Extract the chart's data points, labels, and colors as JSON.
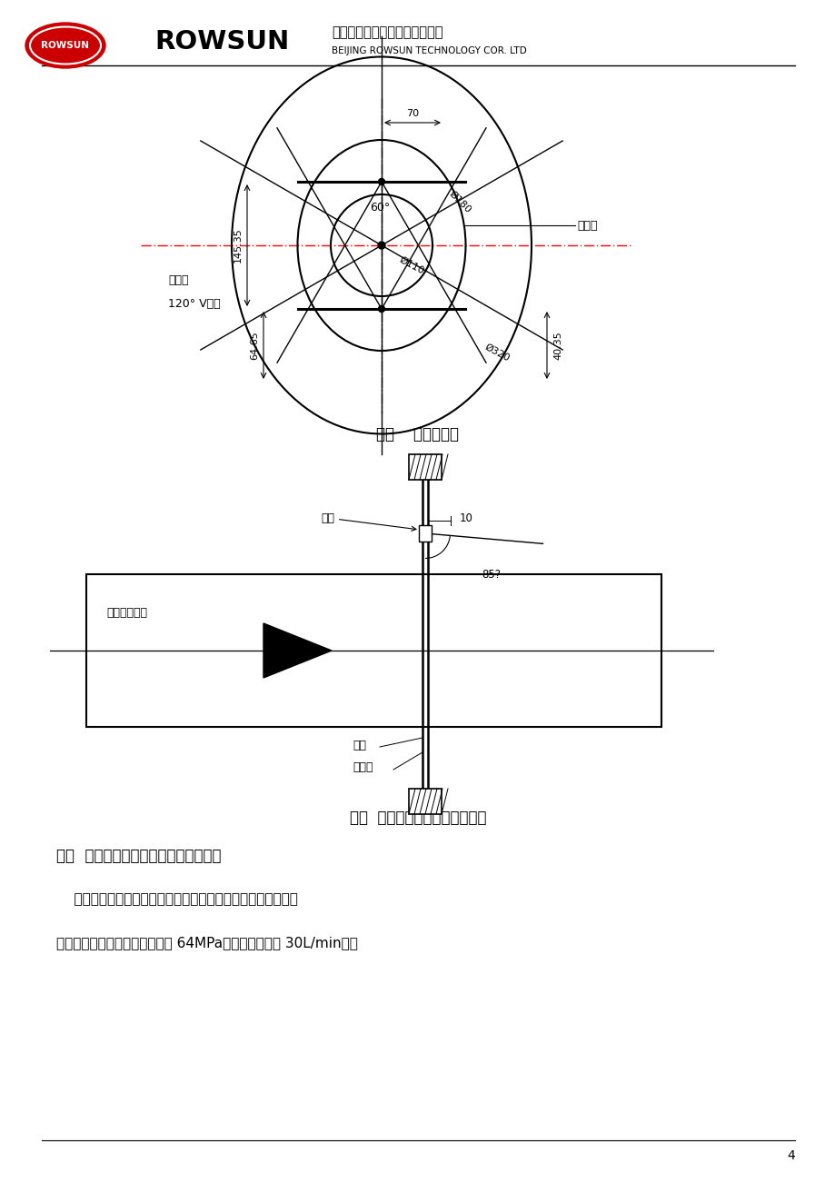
{
  "page_width": 9.2,
  "page_height": 13.02,
  "bg_color": "#ffffff",
  "logo_text": "ROWSUN",
  "company_cn": "北京荣盛时代科技发展有限公司",
  "company_en": "BEIJING ROWSUN TECHNOLOGY COR. LTD",
  "fig1_caption": "图一    喷嘴布置图",
  "fig2_caption": "图二  喷嘴沿工件轴线方向布置图",
  "section5_title": "五、  棒料热态除鳞工艺系统工作原理：",
  "para_text": "    图三为棒料热态除鳞水路系统原理图。高压柱塞泵装置为系统",
  "para_text2": "提供水射流动力，额定工作压力 64MPa，额定工作流量 30L/min，电",
  "page_num": "4",
  "label_cu_bang": "粗棒料",
  "label_xi_bang": "细棒料",
  "label_v_groove": "120° V型槽",
  "label_60deg": "60°",
  "label_phi180": "Ø180",
  "label_phi110": "Ø110",
  "label_phi320": "Ø320",
  "label_145": "145.35",
  "label_70": "70",
  "label_64": "64.65",
  "label_40": "40.35",
  "label_spray_head": "喷头",
  "label_10": "10",
  "label_85": "85?",
  "label_workdir": "工件运行方向",
  "label_work": "工件",
  "label_scale_ring": "除鳞环"
}
